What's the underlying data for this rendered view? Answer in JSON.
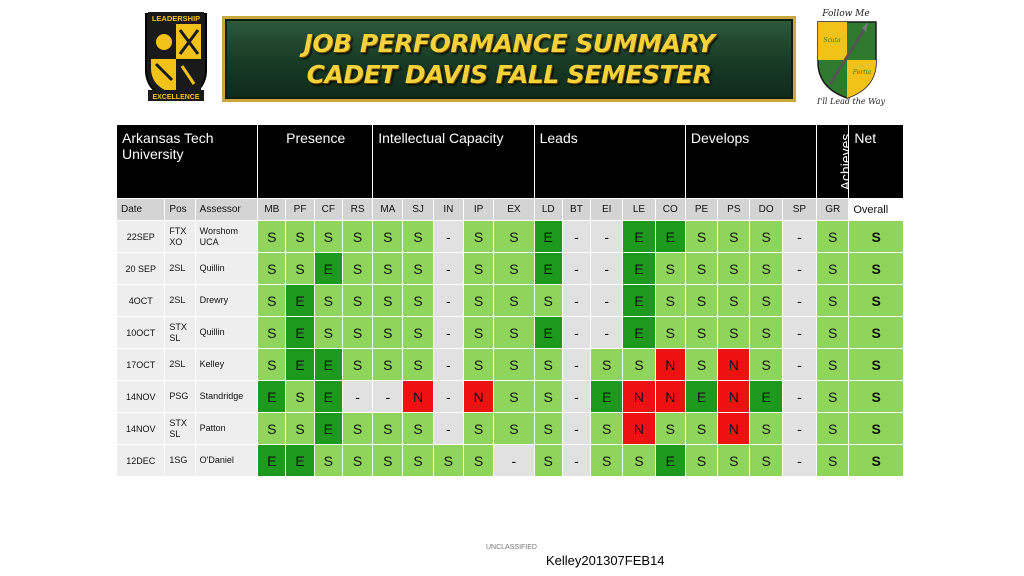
{
  "banner": {
    "line1": "JOB PERFORMANCE SUMMARY",
    "line2": "CADET DAVIS FALL SEMESTER"
  },
  "logo_left": {
    "top_text": "LEADERSHIP",
    "bottom_text": "EXCELLENCE"
  },
  "logo_right": {
    "top_text": "Follow Me",
    "left_text": "Scuta",
    "right_text": "Fortia",
    "bottom_text": "I'll Lead the Way"
  },
  "table": {
    "header": {
      "school": "Arkansas Tech University",
      "groups": [
        "Presence",
        "Intellectual Capacity",
        "Leads",
        "Develops",
        "Achieves",
        "Net"
      ]
    },
    "subheaders": [
      "Date",
      "Pos",
      "Assessor",
      "MB",
      "PF",
      "CF",
      "RS",
      "MA",
      "SJ",
      "IN",
      "IP",
      "EX",
      "LD",
      "BT",
      "EI",
      "LE",
      "CO",
      "PE",
      "PS",
      "DO",
      "SP",
      "GR",
      "Overall"
    ],
    "rows": [
      {
        "date": "22SEP",
        "pos": "FTX XO",
        "assessor": "Worshom UCA",
        "ratings": [
          "S",
          "S",
          "S",
          "S",
          "S",
          "S",
          "-",
          "S",
          "S",
          "E",
          "-",
          "-",
          "E",
          "E",
          "S",
          "S",
          "S",
          "-",
          "S"
        ],
        "overall": "S"
      },
      {
        "date": "20 SEP",
        "pos": "2SL",
        "assessor": "Quillin",
        "ratings": [
          "S",
          "S",
          "E",
          "S",
          "S",
          "S",
          "-",
          "S",
          "S",
          "E",
          "-",
          "-",
          "E",
          "S",
          "S",
          "S",
          "S",
          "-",
          "S"
        ],
        "overall": "S"
      },
      {
        "date": "4OCT",
        "pos": "2SL",
        "assessor": "Drewry",
        "ratings": [
          "S",
          "E",
          "S",
          "S",
          "S",
          "S",
          "-",
          "S",
          "S",
          "S",
          "-",
          "-",
          "E",
          "S",
          "S",
          "S",
          "S",
          "-",
          "S"
        ],
        "overall": "S"
      },
      {
        "date": "10OCT",
        "pos": "STX SL",
        "assessor": "Quillin",
        "ratings": [
          "S",
          "E",
          "S",
          "S",
          "S",
          "S",
          "-",
          "S",
          "S",
          "E",
          "-",
          "-",
          "E",
          "S",
          "S",
          "S",
          "S",
          "-",
          "S"
        ],
        "overall": "S"
      },
      {
        "date": "17OCT",
        "pos": "2SL",
        "assessor": "Kelley",
        "ratings": [
          "S",
          "E",
          "E",
          "S",
          "S",
          "S",
          "-",
          "S",
          "S",
          "S",
          "-",
          "S",
          "S",
          "N",
          "S",
          "N",
          "S",
          "-",
          "S"
        ],
        "overall": "S"
      },
      {
        "date": "14NOV",
        "pos": "PSG",
        "assessor": "Standridge",
        "ratings": [
          "E",
          "S",
          "E",
          "-",
          "-",
          "N",
          "-",
          "N",
          "S",
          "S",
          "-",
          "E",
          "N",
          "N",
          "E",
          "N",
          "E",
          "-",
          "S"
        ],
        "overall": "S"
      },
      {
        "date": "14NOV",
        "pos": "STX SL",
        "assessor": "Patton",
        "ratings": [
          "S",
          "S",
          "E",
          "S",
          "S",
          "S",
          "-",
          "S",
          "S",
          "S",
          "-",
          "S",
          "N",
          "S",
          "S",
          "N",
          "S",
          "-",
          "S"
        ],
        "overall": "S"
      },
      {
        "date": "12DEC",
        "pos": "1SG",
        "assessor": "O'Daniel",
        "ratings": [
          "E",
          "E",
          "S",
          "S",
          "S",
          "S",
          "S",
          "S",
          "-",
          "S",
          "-",
          "S",
          "S",
          "E",
          "S",
          "S",
          "S",
          "-",
          "S"
        ],
        "overall": "S"
      }
    ]
  },
  "footer": {
    "classification": "UNCLASSIFIED",
    "document_id": "Kelley201307FEB14"
  }
}
